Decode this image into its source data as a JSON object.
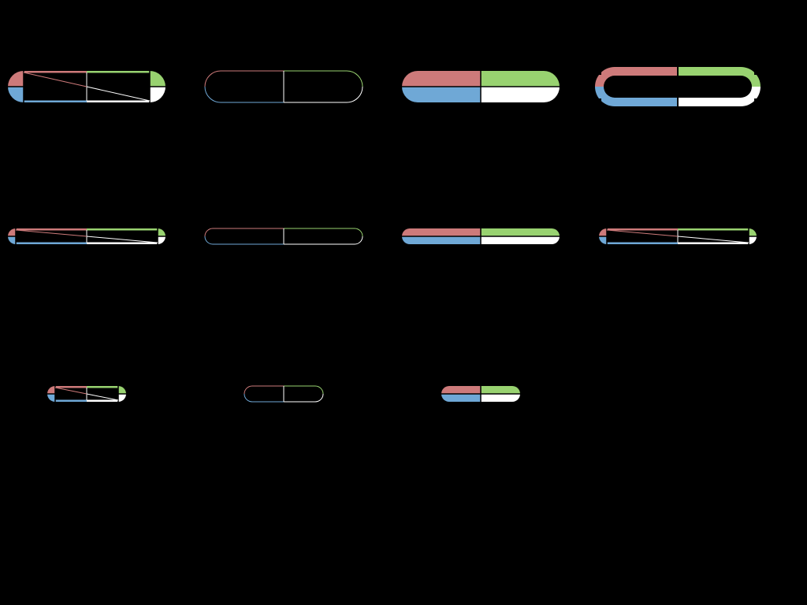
{
  "colors": {
    "background": "#000000",
    "top_left": "#cd7a7a",
    "top_right": "#98d270",
    "bottom_left": "#6fa8d6",
    "bottom_right": "#ffffff",
    "divider": "#ffffff"
  },
  "shapes": [
    {
      "name": "pill-row1-col1-diagonal",
      "style": "diagonal"
    },
    {
      "name": "pill-row1-col2-outline",
      "style": "outline"
    },
    {
      "name": "pill-row1-col3-filled",
      "style": "filled"
    },
    {
      "name": "pill-row1-col4-double-ring",
      "style": "ring"
    },
    {
      "name": "pill-row2-col1-diagonal",
      "style": "diagonal"
    },
    {
      "name": "pill-row2-col2-outline",
      "style": "outline"
    },
    {
      "name": "pill-row2-col3-filled",
      "style": "filled"
    },
    {
      "name": "pill-row2-col4-diagonal",
      "style": "diagonal"
    },
    {
      "name": "pill-row3-col1-diagonal",
      "style": "diagonal"
    },
    {
      "name": "pill-row3-col2-outline",
      "style": "outline"
    },
    {
      "name": "pill-row3-col3-filled",
      "style": "filled"
    }
  ]
}
